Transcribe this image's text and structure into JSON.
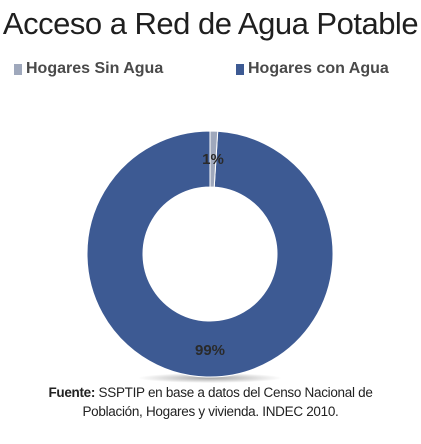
{
  "chart_data": {
    "type": "pie",
    "style": "donut",
    "title": "Acceso a Red de Agua Potable",
    "legend_position": "top",
    "series": [
      {
        "name": "Hogares Sin Agua",
        "value": 1,
        "label": "1%",
        "color": "#9fa8bc"
      },
      {
        "name": "Hogares con Agua",
        "value": 99,
        "label": "99%",
        "color": "#3d5a93"
      }
    ]
  },
  "source": {
    "label": "Fuente:",
    "line1": "SSPTIP en base a datos del Censo Nacional de",
    "line2": "Población, Hogares y vivienda. INDEC 2010."
  }
}
